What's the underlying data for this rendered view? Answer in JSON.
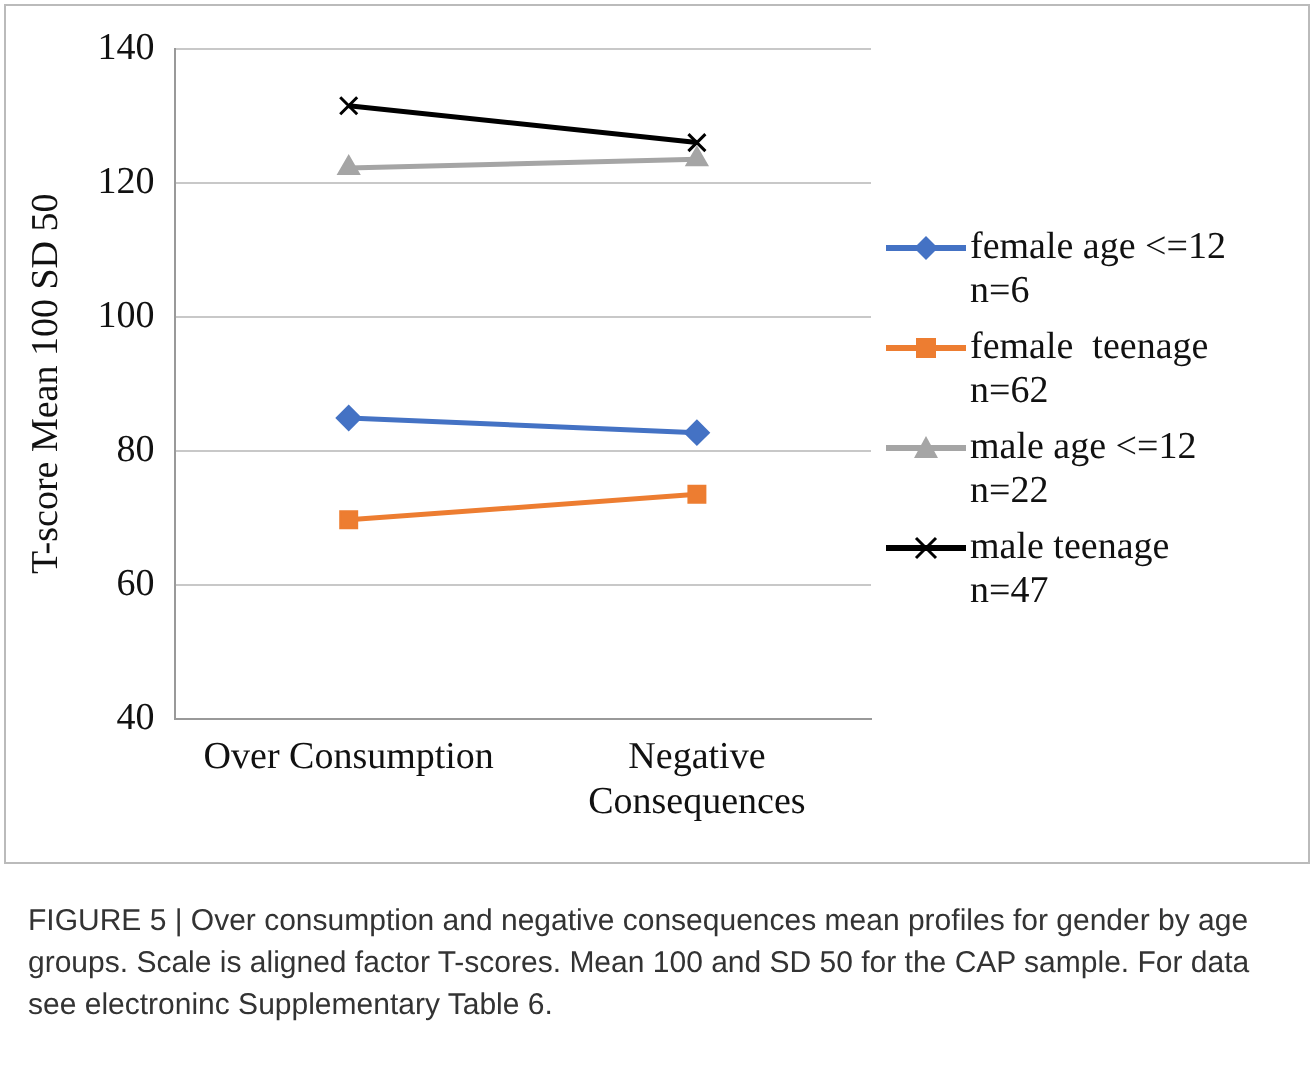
{
  "chart_data": {
    "type": "line",
    "ylabel": "T-score Mean 100 SD 50",
    "categories": [
      "Over Consumption",
      [
        "Negative",
        "Consequences"
      ]
    ],
    "series": [
      {
        "name": "female age <=12\nn=6",
        "color": "#4472c4",
        "marker": "diamond",
        "values": [
          84.9,
          82.7
        ]
      },
      {
        "name": "female  teenage\nn=62",
        "color": "#ed7d31",
        "marker": "square",
        "values": [
          69.7,
          73.5
        ]
      },
      {
        "name": "male age <=12\nn=22",
        "color": "#a5a5a5",
        "marker": "triangle",
        "values": [
          122.2,
          123.5
        ]
      },
      {
        "name": "male teenage\nn=47",
        "color": "#000000",
        "marker": "cross",
        "values": [
          131.5,
          126
        ]
      }
    ],
    "ylim": [
      40,
      140
    ],
    "yticks": [
      40,
      60,
      80,
      100,
      120,
      140
    ],
    "grid": "y",
    "legend": "right",
    "annotations": [
      "FIGURE 5 | Over consumption and negative consequences mean profiles for gender by age groups. Scale is aligned factor T-scores. Mean 100 and SD 50 for the CAP sample. For data see electroninc Supplementary Table 6."
    ]
  }
}
